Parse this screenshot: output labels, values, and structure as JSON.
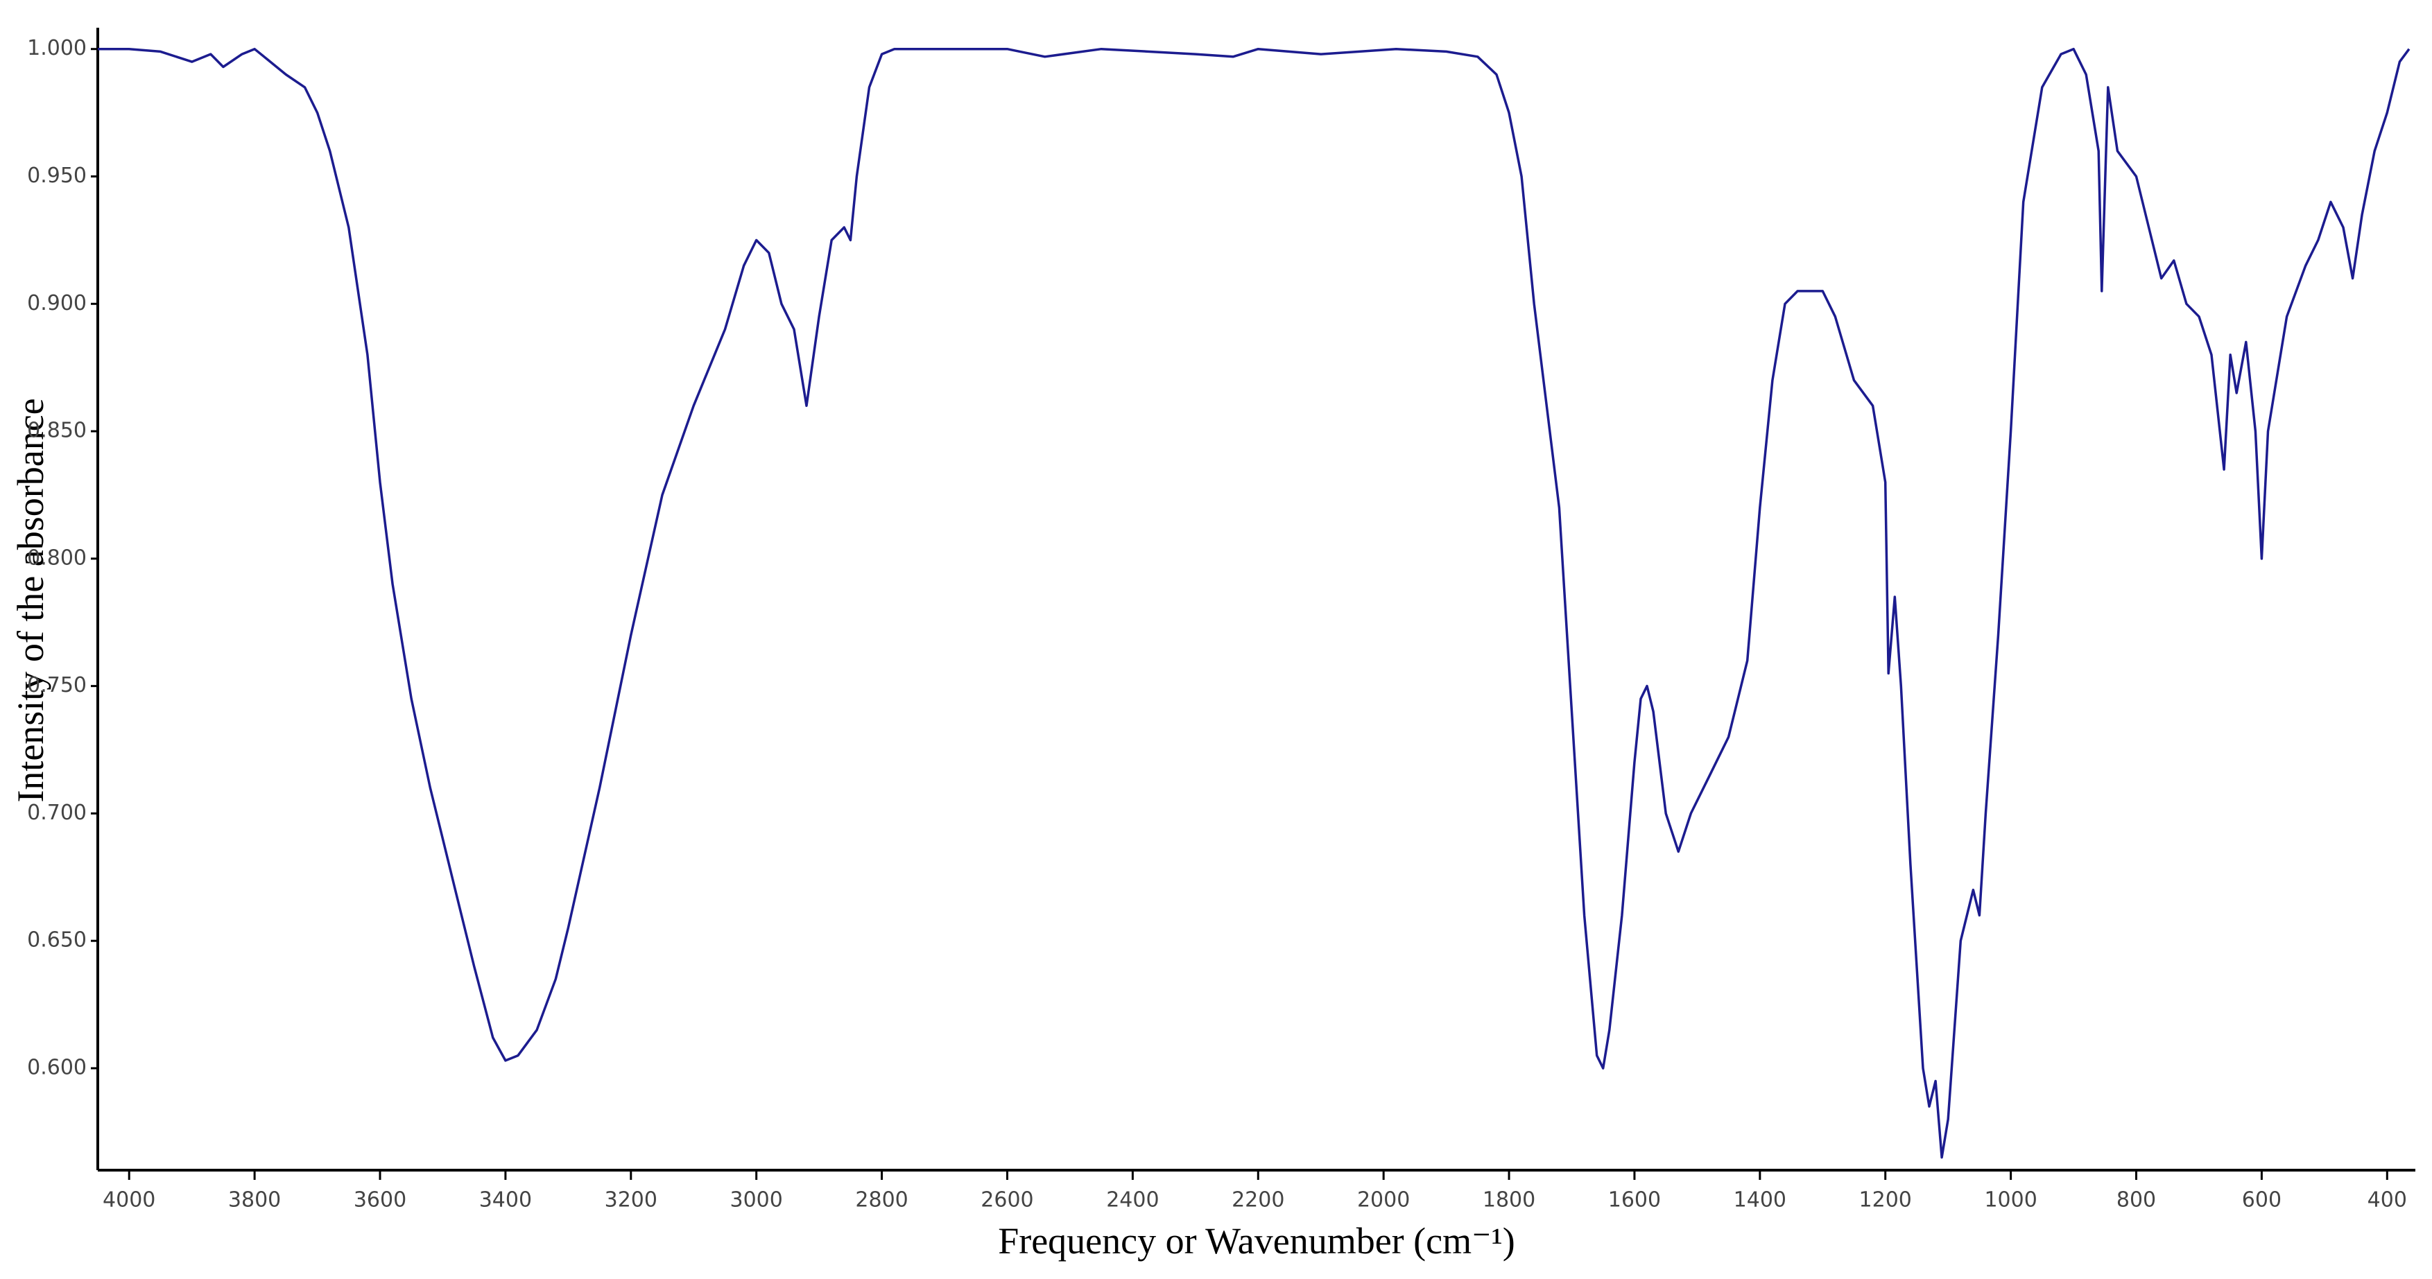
{
  "chart_data": {
    "type": "line",
    "x_label": "Frequency or Wavenumber (cm⁻¹)",
    "y_label": "Intensity of the absorbance",
    "color": "#1c1c8f",
    "xlim": [
      4050,
      355
    ],
    "ylim": [
      0.56,
      1.007
    ],
    "xticks": [
      4000,
      3800,
      3600,
      3400,
      3200,
      3000,
      2800,
      2600,
      2400,
      2200,
      2000,
      1800,
      1600,
      1400,
      1200,
      1000,
      800,
      600,
      400
    ],
    "yticks": [
      {
        "value": 0.6,
        "label": "0.600"
      },
      {
        "value": 0.65,
        "label": "0.650"
      },
      {
        "value": 0.7,
        "label": "0.700"
      },
      {
        "value": 0.75,
        "label": "0.750"
      },
      {
        "value": 0.8,
        "label": "0.800"
      },
      {
        "value": 0.85,
        "label": "0.850"
      },
      {
        "value": 0.9,
        "label": "0.900"
      },
      {
        "value": 0.95,
        "label": "0.950"
      },
      {
        "value": 1,
        "label": "1.000"
      }
    ],
    "x": [
      4050,
      4000,
      3950,
      3900,
      3870,
      3850,
      3820,
      3800,
      3780,
      3750,
      3720,
      3700,
      3680,
      3650,
      3620,
      3600,
      3580,
      3550,
      3520,
      3500,
      3480,
      3450,
      3420,
      3400,
      3380,
      3350,
      3320,
      3300,
      3250,
      3200,
      3150,
      3100,
      3050,
      3020,
      3000,
      2980,
      2960,
      2940,
      2920,
      2900,
      2880,
      2860,
      2850,
      2840,
      2820,
      2800,
      2780,
      2600,
      2540,
      2450,
      2300,
      2240,
      2200,
      2100,
      1980,
      1900,
      1850,
      1820,
      1800,
      1780,
      1760,
      1740,
      1720,
      1700,
      1680,
      1660,
      1650,
      1640,
      1620,
      1600,
      1590,
      1580,
      1570,
      1550,
      1530,
      1510,
      1480,
      1450,
      1420,
      1400,
      1380,
      1360,
      1340,
      1320,
      1300,
      1280,
      1250,
      1220,
      1200,
      1195,
      1185,
      1175,
      1160,
      1140,
      1130,
      1120,
      1110,
      1100,
      1080,
      1060,
      1050,
      1040,
      1020,
      1000,
      980,
      950,
      920,
      900,
      880,
      860,
      855,
      845,
      830,
      800,
      780,
      760,
      740,
      720,
      700,
      680,
      660,
      650,
      640,
      625,
      610,
      600,
      590,
      560,
      530,
      510,
      490,
      470,
      455,
      440,
      420,
      400,
      380,
      365
    ],
    "values": [
      1.0,
      1.0,
      0.999,
      0.995,
      0.998,
      0.993,
      0.998,
      1.0,
      0.996,
      0.99,
      0.985,
      0.975,
      0.96,
      0.93,
      0.88,
      0.83,
      0.79,
      0.745,
      0.71,
      0.69,
      0.67,
      0.64,
      0.612,
      0.603,
      0.605,
      0.615,
      0.635,
      0.655,
      0.71,
      0.77,
      0.825,
      0.86,
      0.89,
      0.915,
      0.925,
      0.92,
      0.9,
      0.89,
      0.86,
      0.895,
      0.925,
      0.93,
      0.925,
      0.95,
      0.985,
      0.998,
      1.0,
      1.0,
      0.997,
      1.0,
      0.998,
      0.997,
      1.0,
      0.998,
      1.0,
      0.999,
      0.997,
      0.99,
      0.975,
      0.95,
      0.9,
      0.86,
      0.82,
      0.74,
      0.66,
      0.605,
      0.6,
      0.615,
      0.66,
      0.72,
      0.745,
      0.75,
      0.74,
      0.7,
      0.685,
      0.7,
      0.715,
      0.73,
      0.76,
      0.82,
      0.87,
      0.9,
      0.905,
      0.905,
      0.905,
      0.895,
      0.87,
      0.86,
      0.83,
      0.755,
      0.785,
      0.75,
      0.68,
      0.6,
      0.585,
      0.595,
      0.565,
      0.58,
      0.65,
      0.67,
      0.66,
      0.7,
      0.77,
      0.85,
      0.94,
      0.985,
      0.998,
      1.0,
      0.99,
      0.96,
      0.905,
      0.985,
      0.96,
      0.95,
      0.93,
      0.91,
      0.917,
      0.9,
      0.895,
      0.88,
      0.835,
      0.88,
      0.865,
      0.885,
      0.85,
      0.8,
      0.85,
      0.895,
      0.915,
      0.925,
      0.94,
      0.93,
      0.91,
      0.935,
      0.96,
      0.975,
      0.995,
      1.0
    ]
  }
}
